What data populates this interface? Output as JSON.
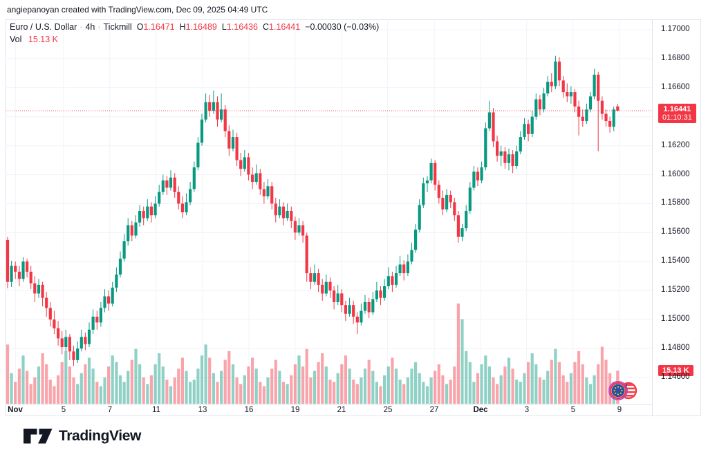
{
  "attribution": "angiepanoyan created with TradingView.com, Dec 09, 2025 04:49 UTC",
  "legend": {
    "title": "Euro / U.S. Dollar",
    "sep": "·",
    "interval": "4h",
    "broker": "Tickmill",
    "o_label": "O",
    "o": "1.16471",
    "h_label": "H",
    "h": "1.16489",
    "l_label": "L",
    "l": "1.16436",
    "c_label": "C",
    "c": "1.16441",
    "change": "−0.00030 (−0.03%)",
    "vol_label": "Vol",
    "vol_value": "15.13 K"
  },
  "price_axis": {
    "labels": [
      {
        "text": "1.17000",
        "price": 1.17
      },
      {
        "text": "1.16800",
        "price": 1.168
      },
      {
        "text": "1.16600",
        "price": 1.166
      },
      {
        "text": "1.16200",
        "price": 1.162
      },
      {
        "text": "1.16000",
        "price": 1.16
      },
      {
        "text": "1.15800",
        "price": 1.158
      },
      {
        "text": "1.15600",
        "price": 1.156
      },
      {
        "text": "1.15400",
        "price": 1.154
      },
      {
        "text": "1.15200",
        "price": 1.152
      },
      {
        "text": "1.15000",
        "price": 1.15
      },
      {
        "text": "1.14800",
        "price": 1.148
      },
      {
        "text": "1.14600",
        "price": 1.146
      }
    ],
    "last_price_label": "1.16441",
    "countdown": "01:10:31",
    "volume_badge": "15.13 K"
  },
  "time_axis": {
    "ticks": [
      {
        "label": "Nov",
        "index": 2.0,
        "bold": true
      },
      {
        "label": "5",
        "index": 14.4,
        "bold": false
      },
      {
        "label": "7",
        "index": 26.3,
        "bold": false
      },
      {
        "label": "11",
        "index": 38.2,
        "bold": false
      },
      {
        "label": "13",
        "index": 50.2,
        "bold": false
      },
      {
        "label": "16",
        "index": 62.1,
        "bold": false
      },
      {
        "label": "19",
        "index": 74.0,
        "bold": false
      },
      {
        "label": "21",
        "index": 85.9,
        "bold": false
      },
      {
        "label": "25",
        "index": 97.8,
        "bold": false
      },
      {
        "label": "27",
        "index": 109.8,
        "bold": false
      },
      {
        "label": "Dec",
        "index": 121.7,
        "bold": true
      },
      {
        "label": "3",
        "index": 133.6,
        "bold": false
      },
      {
        "label": "5",
        "index": 145.5,
        "bold": false
      },
      {
        "label": "9",
        "index": 157.4,
        "bold": false
      }
    ]
  },
  "colors": {
    "up": "#089981",
    "down": "#f23645",
    "vol_up": "rgba(8,153,129,0.45)",
    "vol_down": "rgba(242,54,69,0.45)",
    "grid": "#f0f3fa",
    "axis_text": "#131722",
    "badge_bg": "#f23645",
    "last_price_line": "#f23645"
  },
  "branding": {
    "logo_text": "TradingView"
  },
  "chart_data": {
    "type": "candlestick+volume",
    "symbol": "Euro / U.S. Dollar (EURUSD)",
    "interval": "4h",
    "source": "Tickmill",
    "last_price": 1.16441,
    "y_axis": {
      "min": 1.1455,
      "max": 1.1707,
      "tick_step": 0.002
    },
    "grid_prices": [
      1.17,
      1.168,
      1.166,
      1.164,
      1.162,
      1.16,
      1.158,
      1.156,
      1.154,
      1.152,
      1.15,
      1.148,
      1.146
    ],
    "time_range": "Nov 3 – Dec 9, 6 bars/day",
    "candles_format": [
      "open",
      "high",
      "low",
      "close"
    ],
    "candles": [
      [
        1.1555,
        1.1557,
        1.15215,
        1.1526
      ],
      [
        1.1526,
        1.15405,
        1.15225,
        1.1537
      ],
      [
        1.1537,
        1.154,
        1.1528,
        1.1533
      ],
      [
        1.1533,
        1.1537,
        1.1523,
        1.1528
      ],
      [
        1.1528,
        1.1543,
        1.1526,
        1.154
      ],
      [
        1.154,
        1.1542,
        1.1529,
        1.1533
      ],
      [
        1.1533,
        1.1537,
        1.1521,
        1.1525
      ],
      [
        1.1525,
        1.153,
        1.1512,
        1.1518
      ],
      [
        1.1518,
        1.1528,
        1.1515,
        1.1524
      ],
      [
        1.1524,
        1.1526,
        1.1509,
        1.1515
      ],
      [
        1.1515,
        1.1519,
        1.1502,
        1.1508
      ],
      [
        1.1508,
        1.1512,
        1.1495,
        1.15
      ],
      [
        1.15,
        1.1506,
        1.149,
        1.1494
      ],
      [
        1.1494,
        1.1499,
        1.1482,
        1.1487
      ],
      [
        1.1487,
        1.1492,
        1.1476,
        1.1481
      ],
      [
        1.1481,
        1.1493,
        1.1478,
        1.1488
      ],
      [
        1.1488,
        1.149,
        1.1472,
        1.1478
      ],
      [
        1.1478,
        1.1482,
        1.1468,
        1.1472
      ],
      [
        1.1472,
        1.1485,
        1.147,
        1.148
      ],
      [
        1.148,
        1.1493,
        1.1478,
        1.1488
      ],
      [
        1.1488,
        1.1491,
        1.1479,
        1.1483
      ],
      [
        1.1483,
        1.1498,
        1.1481,
        1.1493
      ],
      [
        1.1493,
        1.1507,
        1.149,
        1.1502
      ],
      [
        1.1502,
        1.1506,
        1.1493,
        1.1498
      ],
      [
        1.1498,
        1.1512,
        1.1495,
        1.1508
      ],
      [
        1.1508,
        1.1521,
        1.1505,
        1.1516
      ],
      [
        1.1516,
        1.152,
        1.1506,
        1.1511
      ],
      [
        1.1511,
        1.1526,
        1.1509,
        1.1522
      ],
      [
        1.1522,
        1.1536,
        1.1519,
        1.1531
      ],
      [
        1.1531,
        1.1547,
        1.1529,
        1.1542
      ],
      [
        1.1542,
        1.1559,
        1.154,
        1.1554
      ],
      [
        1.1554,
        1.157,
        1.1551,
        1.1565
      ],
      [
        1.1565,
        1.1568,
        1.1554,
        1.1558
      ],
      [
        1.1558,
        1.1572,
        1.1556,
        1.1567
      ],
      [
        1.1567,
        1.1579,
        1.1564,
        1.1575
      ],
      [
        1.1575,
        1.1578,
        1.1565,
        1.157
      ],
      [
        1.157,
        1.1583,
        1.1568,
        1.1578
      ],
      [
        1.1578,
        1.1581,
        1.1567,
        1.1572
      ],
      [
        1.1572,
        1.1585,
        1.157,
        1.158
      ],
      [
        1.158,
        1.1593,
        1.1578,
        1.1588
      ],
      [
        1.1588,
        1.16,
        1.1586,
        1.1596
      ],
      [
        1.1596,
        1.1599,
        1.1586,
        1.1591
      ],
      [
        1.1591,
        1.1603,
        1.1589,
        1.1598
      ],
      [
        1.1598,
        1.1601,
        1.1584,
        1.1588
      ],
      [
        1.1588,
        1.1592,
        1.1576,
        1.158
      ],
      [
        1.158,
        1.1585,
        1.157,
        1.1574
      ],
      [
        1.1574,
        1.1587,
        1.1572,
        1.1581
      ],
      [
        1.1581,
        1.1595,
        1.1579,
        1.159
      ],
      [
        1.159,
        1.1609,
        1.1588,
        1.1605
      ],
      [
        1.1605,
        1.1626,
        1.1603,
        1.1622
      ],
      [
        1.1622,
        1.1642,
        1.162,
        1.1638
      ],
      [
        1.1638,
        1.1656,
        1.1636,
        1.165
      ],
      [
        1.165,
        1.1655,
        1.164,
        1.1644
      ],
      [
        1.1644,
        1.1658,
        1.1642,
        1.165
      ],
      [
        1.165,
        1.1654,
        1.1633,
        1.1638
      ],
      [
        1.1638,
        1.1656,
        1.1636,
        1.1645
      ],
      [
        1.1645,
        1.1648,
        1.1626,
        1.163
      ],
      [
        1.163,
        1.1634,
        1.1613,
        1.1618
      ],
      [
        1.1618,
        1.1631,
        1.1616,
        1.1626
      ],
      [
        1.1626,
        1.1629,
        1.1606,
        1.161
      ],
      [
        1.161,
        1.1615,
        1.1599,
        1.1604
      ],
      [
        1.1604,
        1.1617,
        1.1602,
        1.1612
      ],
      [
        1.1612,
        1.1615,
        1.1596,
        1.16
      ],
      [
        1.16,
        1.1605,
        1.159,
        1.1595
      ],
      [
        1.1595,
        1.1607,
        1.1593,
        1.1601
      ],
      [
        1.1601,
        1.1604,
        1.1586,
        1.159
      ],
      [
        1.159,
        1.1595,
        1.158,
        1.1585
      ],
      [
        1.1585,
        1.1597,
        1.1583,
        1.1592
      ],
      [
        1.1592,
        1.1595,
        1.1576,
        1.158
      ],
      [
        1.158,
        1.1584,
        1.1567,
        1.1572
      ],
      [
        1.1572,
        1.1583,
        1.157,
        1.1578
      ],
      [
        1.1578,
        1.1581,
        1.1565,
        1.157
      ],
      [
        1.157,
        1.158,
        1.1568,
        1.1575
      ],
      [
        1.1575,
        1.1578,
        1.1563,
        1.1568
      ],
      [
        1.1568,
        1.1571,
        1.1555,
        1.156
      ],
      [
        1.156,
        1.157,
        1.1558,
        1.1565
      ],
      [
        1.1565,
        1.1568,
        1.1553,
        1.1558
      ],
      [
        1.1558,
        1.156,
        1.1526,
        1.1532
      ],
      [
        1.1532,
        1.1536,
        1.1521,
        1.1526
      ],
      [
        1.1526,
        1.1538,
        1.1524,
        1.1532
      ],
      [
        1.1532,
        1.1535,
        1.1519,
        1.1524
      ],
      [
        1.1524,
        1.1528,
        1.1513,
        1.1518
      ],
      [
        1.1518,
        1.1531,
        1.1516,
        1.1526
      ],
      [
        1.1526,
        1.1529,
        1.1515,
        1.152
      ],
      [
        1.152,
        1.1523,
        1.1507,
        1.1512
      ],
      [
        1.1512,
        1.1524,
        1.151,
        1.1518
      ],
      [
        1.1518,
        1.1521,
        1.1505,
        1.151
      ],
      [
        1.151,
        1.1513,
        1.1499,
        1.1504
      ],
      [
        1.1504,
        1.1515,
        1.1502,
        1.151
      ],
      [
        1.151,
        1.1513,
        1.1497,
        1.1502
      ],
      [
        1.1502,
        1.1505,
        1.149,
        1.1498
      ],
      [
        1.1498,
        1.1511,
        1.1496,
        1.1506
      ],
      [
        1.1506,
        1.1517,
        1.1504,
        1.1512
      ],
      [
        1.1512,
        1.1515,
        1.1501,
        1.1505
      ],
      [
        1.1505,
        1.1519,
        1.1503,
        1.1514
      ],
      [
        1.1514,
        1.1526,
        1.1512,
        1.152
      ],
      [
        1.152,
        1.1523,
        1.151,
        1.1515
      ],
      [
        1.1515,
        1.1528,
        1.1513,
        1.1523
      ],
      [
        1.1523,
        1.1536,
        1.1521,
        1.153
      ],
      [
        1.153,
        1.1533,
        1.1519,
        1.1524
      ],
      [
        1.1524,
        1.1537,
        1.1522,
        1.1532
      ],
      [
        1.1532,
        1.1544,
        1.153,
        1.1538
      ],
      [
        1.1538,
        1.1541,
        1.1527,
        1.1532
      ],
      [
        1.1532,
        1.1545,
        1.153,
        1.154
      ],
      [
        1.154,
        1.1553,
        1.1538,
        1.1548
      ],
      [
        1.1548,
        1.1566,
        1.1546,
        1.1562
      ],
      [
        1.1562,
        1.1583,
        1.156,
        1.1579
      ],
      [
        1.1579,
        1.1598,
        1.1577,
        1.1594
      ],
      [
        1.1594,
        1.1599,
        1.1588,
        1.1596
      ],
      [
        1.1596,
        1.1611,
        1.1594,
        1.1608
      ],
      [
        1.1608,
        1.161,
        1.1589,
        1.1593
      ],
      [
        1.1593,
        1.1596,
        1.158,
        1.1584
      ],
      [
        1.1584,
        1.1589,
        1.1572,
        1.1576
      ],
      [
        1.1576,
        1.159,
        1.1574,
        1.1586
      ],
      [
        1.1586,
        1.1589,
        1.1577,
        1.1581
      ],
      [
        1.1581,
        1.1584,
        1.1568,
        1.1572
      ],
      [
        1.1572,
        1.1575,
        1.1553,
        1.1557
      ],
      [
        1.1557,
        1.1566,
        1.1554,
        1.1563
      ],
      [
        1.1563,
        1.1579,
        1.1561,
        1.1575
      ],
      [
        1.1575,
        1.1595,
        1.1573,
        1.1591
      ],
      [
        1.1591,
        1.1606,
        1.1589,
        1.1602
      ],
      [
        1.1602,
        1.1605,
        1.1592,
        1.1596
      ],
      [
        1.1596,
        1.1609,
        1.1594,
        1.1605
      ],
      [
        1.1605,
        1.1636,
        1.1603,
        1.1632
      ],
      [
        1.1632,
        1.1651,
        1.163,
        1.1643
      ],
      [
        1.1643,
        1.1646,
        1.1619,
        1.1623
      ],
      [
        1.1623,
        1.1627,
        1.1609,
        1.1613
      ],
      [
        1.1613,
        1.162,
        1.1606,
        1.1616
      ],
      [
        1.1616,
        1.1619,
        1.1604,
        1.1608
      ],
      [
        1.1608,
        1.1618,
        1.1603,
        1.1614
      ],
      [
        1.1614,
        1.1617,
        1.1601,
        1.1606
      ],
      [
        1.1606,
        1.162,
        1.1604,
        1.1616
      ],
      [
        1.1616,
        1.163,
        1.1614,
        1.1626
      ],
      [
        1.1626,
        1.1639,
        1.1624,
        1.1635
      ],
      [
        1.1635,
        1.1638,
        1.1623,
        1.1628
      ],
      [
        1.1628,
        1.1644,
        1.1626,
        1.164
      ],
      [
        1.164,
        1.1656,
        1.1638,
        1.1652
      ],
      [
        1.1652,
        1.1655,
        1.1641,
        1.1645
      ],
      [
        1.1645,
        1.166,
        1.1643,
        1.1656
      ],
      [
        1.1656,
        1.1668,
        1.1654,
        1.1664
      ],
      [
        1.1664,
        1.167,
        1.1657,
        1.1661
      ],
      [
        1.1661,
        1.1682,
        1.1659,
        1.1678
      ],
      [
        1.1678,
        1.1681,
        1.1661,
        1.1665
      ],
      [
        1.1665,
        1.1668,
        1.1653,
        1.1657
      ],
      [
        1.1657,
        1.1663,
        1.165,
        1.1654
      ],
      [
        1.1654,
        1.1661,
        1.1649,
        1.1657
      ],
      [
        1.1657,
        1.1659,
        1.1643,
        1.1647
      ],
      [
        1.1647,
        1.1651,
        1.1627,
        1.164
      ],
      [
        1.164,
        1.1645,
        1.1633,
        1.1637
      ],
      [
        1.1637,
        1.1649,
        1.1635,
        1.1645
      ],
      [
        1.1645,
        1.1657,
        1.1643,
        1.1654
      ],
      [
        1.1654,
        1.1673,
        1.1652,
        1.1669
      ],
      [
        1.1669,
        1.1671,
        1.1616,
        1.1651
      ],
      [
        1.1651,
        1.1654,
        1.1638,
        1.1642
      ],
      [
        1.1642,
        1.1645,
        1.1633,
        1.1637
      ],
      [
        1.1637,
        1.164,
        1.1629,
        1.1633
      ],
      [
        1.1633,
        1.1647,
        1.163,
        1.1645
      ],
      [
        1.16471,
        1.16489,
        1.16436,
        1.16441
      ]
    ],
    "volumes_k": [
      27,
      14,
      10,
      16,
      22,
      15,
      9,
      12,
      17,
      23,
      18,
      11,
      8,
      13,
      19,
      24,
      17,
      12,
      9,
      14,
      18,
      21,
      16,
      10,
      8,
      12,
      17,
      22,
      19,
      13,
      10,
      15,
      20,
      25,
      18,
      12,
      9,
      13,
      18,
      23,
      17,
      11,
      8,
      12,
      16,
      21,
      15,
      10,
      11,
      16,
      22,
      27,
      21,
      14,
      10,
      15,
      20,
      24,
      18,
      12,
      9,
      13,
      17,
      21,
      16,
      10,
      8,
      12,
      16,
      20,
      15,
      10,
      9,
      13,
      18,
      22,
      17,
      25,
      12,
      15,
      19,
      23,
      17,
      11,
      10,
      14,
      18,
      22,
      16,
      11,
      9,
      12,
      16,
      20,
      15,
      10,
      8,
      13,
      17,
      21,
      16,
      11,
      9,
      12,
      16,
      19,
      14,
      10,
      8,
      12,
      15,
      18,
      13,
      9,
      11,
      17,
      45.7,
      38.5,
      24,
      19,
      10,
      14,
      18,
      22,
      17,
      12,
      9,
      13,
      17,
      21,
      16,
      11,
      10,
      14,
      19,
      23,
      18,
      12,
      11,
      15,
      20,
      25,
      19,
      13,
      10,
      14,
      19,
      24,
      18,
      12,
      9,
      13,
      18,
      26,
      20,
      14,
      10,
      15.13
    ],
    "last_volume_k": 15.13
  }
}
